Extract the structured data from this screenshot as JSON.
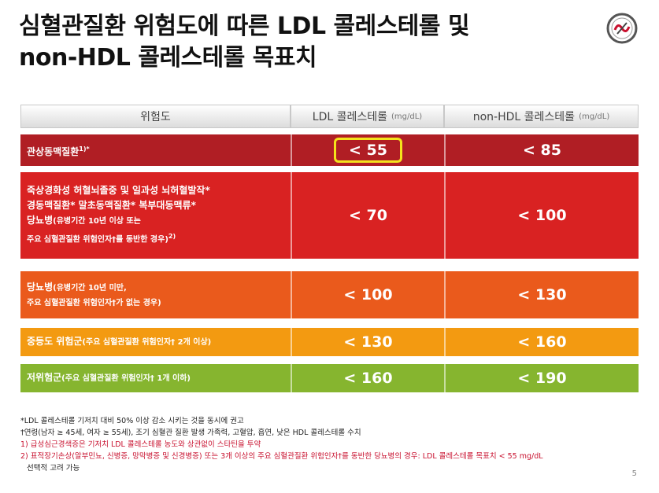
{
  "title": {
    "line1": "심혈관질환 위험도에 따른 LDL 콜레스테롤 및",
    "line2": "non-HDL 콜레스테롤 목표치"
  },
  "colors": {
    "very_high": "#b01e24",
    "high": "#d92222",
    "moderate_high": "#ea5a1c",
    "moderate": "#f39a11",
    "low": "#86b52f",
    "highlight": "#f4e21b"
  },
  "table": {
    "header": {
      "risk": "위험도",
      "ldl": "LDL 콜레스테롤",
      "ldl_unit": "(mg/dL)",
      "nonhdl": "non-HDL 콜레스테롤",
      "nonhdl_unit": "(mg/dL)"
    },
    "rows": [
      {
        "label": "관상동맥질환",
        "sup": "1)*",
        "ldl": "< 55",
        "nonhdl": "< 85"
      },
      {
        "line1": "죽상경화성 허혈뇌졸중 및 일과성 뇌허혈발작*",
        "line2": "경동맥질환* 말초동맥질환* 복부대동맥류*",
        "line3_bold": "당뇨병",
        "line3_rest": "(유병기간 10년 이상 또는",
        "line4": "주요 심혈관질환 위험인자†를 동반한 경우)",
        "line4_sup": "2)",
        "ldl": "< 70",
        "nonhdl": "< 100"
      },
      {
        "line1_bold": "당뇨병",
        "line1_rest": "(유병기간 10년 미만,",
        "line2": "주요 심혈관질환 위험인자†가 없는 경우)",
        "ldl": "< 100",
        "nonhdl": "< 130"
      },
      {
        "label_bold": "중등도 위험군",
        "label_rest": "(주요 심혈관질환 위험인자† 2개 이상)",
        "ldl": "< 130",
        "nonhdl": "< 160"
      },
      {
        "label_bold": "저위험군",
        "label_rest": "(주요 심혈관질환 위험인자† 1개 이하)",
        "ldl": "< 160",
        "nonhdl": "< 190"
      }
    ]
  },
  "notes": {
    "n1": "*LDL 콜레스테롤 기저치 대비 50% 이상 감소 시키는 것을 동시에 권고",
    "n2": "†연령(남자 ≥ 45세, 여자 ≥ 55세), 조기 심혈관 질환 발생 가족력, 고혈압, 흡연, 낮은 HDL 콜레스테롤 수치",
    "n3": "1) 급성심근경색증은 기저치 LDL 콜레스테롤 농도와 상관없이 스타틴을 투약",
    "n4": "2) 표적장기손상(알부민뇨, 신병증, 망막병증 및 신경병증) 또는 3개 이상의 주요 심혈관질환 위험인자†를 동반한 당뇨병의 경우: LDL 콜레스테롤 목표치 < 55 mg/dL",
    "n4b": "선택적 고려 가능"
  },
  "page_number": "5"
}
